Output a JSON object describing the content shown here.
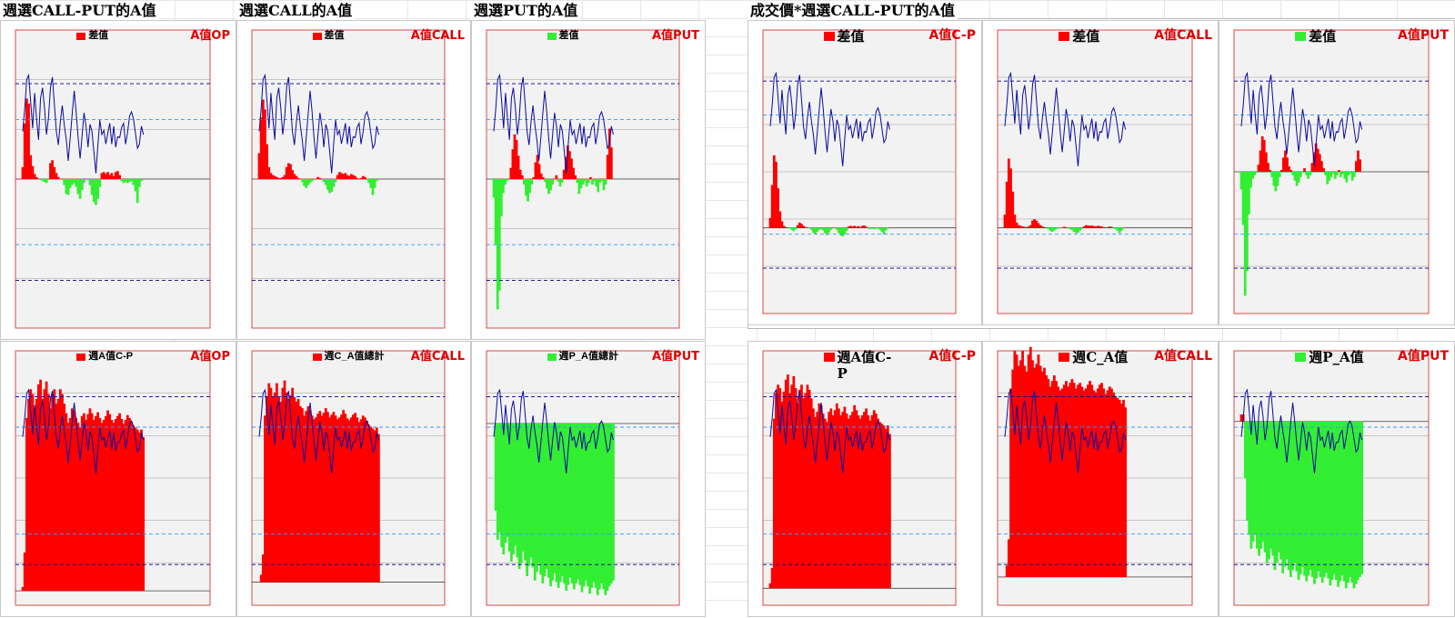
{
  "colors": {
    "up": "#ff0000",
    "down": "#33ee33",
    "price_line": "#0a0aa0",
    "tag": "#e00000"
  },
  "sections": [
    {
      "title": "週選CALL-PUT的A值"
    },
    {
      "title": "週選CALL的A值"
    },
    {
      "title": "週選PUT的A值"
    },
    {
      "title": "成交價*週選CALL-PUT的A值"
    }
  ],
  "chart_data": [
    {
      "type": "area",
      "row": "top",
      "group": "left",
      "legend": "差值",
      "tag": "A值OP",
      "legend_color": "#ff0000",
      "series": [
        {
          "values": [
            120,
            560,
            810,
            760,
            240,
            130,
            50,
            20,
            0,
            0,
            -20,
            -30,
            -40,
            -10,
            160,
            190,
            120,
            60,
            20,
            0,
            -10,
            -60,
            -150,
            -160,
            -90,
            -60,
            -40,
            -80,
            -150,
            -200,
            -110,
            -40,
            0,
            -10,
            -60,
            -160,
            -230,
            -260,
            -200,
            -80,
            60,
            70,
            50,
            70,
            40,
            60,
            30,
            70,
            80,
            40,
            -20,
            -40,
            -30,
            -40,
            -30,
            -20,
            -60,
            -120,
            -240,
            -80,
            -20,
            0
          ]
        }
      ],
      "ylim": [
        -1500,
        1500
      ]
    },
    {
      "type": "area",
      "row": "top",
      "group": "left",
      "legend": "差值",
      "tag": "A值CALL",
      "legend_color": "#ff0000",
      "series": [
        {
          "values": [
            260,
            620,
            800,
            700,
            350,
            120,
            60,
            40,
            30,
            20,
            10,
            10,
            20,
            40,
            120,
            160,
            150,
            90,
            50,
            30,
            10,
            0,
            -30,
            -70,
            -90,
            -60,
            -40,
            -20,
            -10,
            0,
            20,
            10,
            -10,
            -30,
            -60,
            -110,
            -140,
            -130,
            -80,
            -30,
            40,
            70,
            60,
            50,
            60,
            40,
            30,
            50,
            40,
            30,
            10,
            0,
            10,
            30,
            20,
            -10,
            -40,
            -90,
            -160,
            -90,
            -20,
            0
          ]
        }
      ],
      "ylim": [
        -1500,
        1500
      ]
    },
    {
      "type": "area",
      "row": "top",
      "group": "left",
      "legend": "差值",
      "tag": "A值PUT",
      "legend_color": "#33ee33",
      "series": [
        {
          "values": [
            -200,
            -700,
            -1400,
            -1200,
            -400,
            -150,
            -60,
            -20,
            0,
            120,
            320,
            480,
            420,
            250,
            100,
            40,
            -60,
            -180,
            -240,
            -150,
            -60,
            20,
            180,
            260,
            160,
            60,
            20,
            -30,
            -100,
            -160,
            -120,
            -60,
            0,
            40,
            -30,
            -80,
            -40,
            100,
            240,
            360,
            300,
            220,
            120,
            40,
            -40,
            -160,
            -100,
            -60,
            -20,
            -80,
            -40,
            20,
            -60,
            -20,
            -80,
            -140,
            -40,
            -20,
            -120,
            -60,
            260,
            540,
            340,
            0
          ]
        }
      ],
      "ylim": [
        -1600,
        1600
      ]
    },
    {
      "type": "area",
      "row": "top",
      "group": "right",
      "legend": "差值",
      "tag": "A值C-P",
      "legend_color": "#ff0000",
      "series": [
        {
          "values": [
            300,
            1300,
            2200,
            2000,
            1200,
            500,
            200,
            60,
            20,
            0,
            -20,
            -60,
            -100,
            -40,
            80,
            160,
            120,
            60,
            20,
            0,
            -10,
            -60,
            -150,
            -180,
            -120,
            -60,
            -40,
            -80,
            -160,
            -220,
            -140,
            -60,
            0,
            -20,
            -60,
            -160,
            -230,
            -260,
            -200,
            -90,
            40,
            60,
            40,
            60,
            30,
            50,
            20,
            60,
            70,
            30,
            -20,
            -40,
            -30,
            -40,
            -30,
            -20,
            -60,
            -120,
            -200,
            -80,
            -20,
            0
          ]
        }
      ],
      "ylim": [
        -2600,
        6000
      ]
    },
    {
      "type": "area",
      "row": "top",
      "group": "right",
      "legend": "差值",
      "tag": "A值CALL",
      "legend_color": "#ff0000",
      "series": [
        {
          "values": [
            400,
            1400,
            2100,
            1800,
            1100,
            400,
            160,
            80,
            60,
            40,
            30,
            20,
            40,
            80,
            220,
            260,
            220,
            140,
            80,
            40,
            20,
            0,
            -40,
            -90,
            -120,
            -80,
            -40,
            -20,
            -10,
            0,
            30,
            20,
            -10,
            -40,
            -70,
            -120,
            -160,
            -150,
            -90,
            -30,
            40,
            80,
            70,
            60,
            70,
            50,
            40,
            60,
            50,
            40,
            20,
            0,
            20,
            40,
            30,
            -10,
            -40,
            -90,
            -160,
            -90,
            -20,
            0
          ]
        }
      ],
      "ylim": [
        -2600,
        6000
      ]
    },
    {
      "type": "area",
      "row": "top",
      "group": "right",
      "legend": "差值",
      "tag": "A值PUT",
      "legend_color": "#33ee33",
      "series": [
        {
          "values": [
            -100,
            -300,
            -700,
            -560,
            -240,
            -90,
            -40,
            -20,
            0,
            40,
            120,
            200,
            180,
            110,
            50,
            10,
            -30,
            -80,
            -110,
            -80,
            -30,
            10,
            80,
            120,
            80,
            30,
            10,
            -20,
            -50,
            -80,
            -60,
            -30,
            0,
            20,
            -20,
            -40,
            -20,
            50,
            110,
            160,
            130,
            100,
            60,
            20,
            -20,
            -70,
            -50,
            -30,
            -10,
            -40,
            -20,
            10,
            -30,
            -10,
            -40,
            -60,
            -20,
            -10,
            -50,
            -30,
            60,
            120,
            70,
            0
          ]
        }
      ],
      "ylim": [
        -800,
        800
      ]
    },
    {
      "type": "area",
      "row": "bottom",
      "group": "left",
      "legend": "週A值C-P",
      "tag": "A值OP",
      "legend_color": "#ff0000",
      "series": [
        {
          "values": [
            400,
            4000,
            18000,
            20000,
            21000,
            20500,
            19000,
            20000,
            21500,
            22000,
            20000,
            21000,
            21800,
            20500,
            19000,
            20500,
            21000,
            19500,
            20000,
            21000,
            20500,
            19500,
            18500,
            17500,
            18000,
            19000,
            18800,
            18000,
            17500,
            17000,
            18200,
            18500,
            17800,
            18400,
            19000,
            18500,
            17800,
            18200,
            18600,
            18000,
            17500,
            17800,
            18200,
            18800,
            18400,
            17800,
            17500,
            17900,
            18200,
            18500,
            17900,
            17400,
            17800,
            18300,
            18000,
            17600,
            17200,
            17000,
            16800,
            16500,
            16800,
            16000
          ]
        }
      ],
      "ylim": [
        -1500,
        25000
      ]
    },
    {
      "type": "area",
      "row": "bottom",
      "group": "left",
      "legend": "週C_A值總計",
      "tag": "A值CALL",
      "legend_color": "#ff0000",
      "series": [
        {
          "values": [
            0,
            800,
            3000,
            18000,
            20000,
            21500,
            21000,
            20000,
            20500,
            21500,
            20000,
            19500,
            21000,
            21800,
            20500,
            19800,
            20200,
            21000,
            20000,
            19500,
            19800,
            19000,
            18800,
            18000,
            18500,
            19000,
            18600,
            18000,
            17600,
            17800,
            18200,
            18500,
            18000,
            18300,
            18800,
            18400,
            17800,
            18100,
            18400,
            18000,
            17600,
            17800,
            18100,
            18600,
            18200,
            17700,
            17500,
            17800,
            18100,
            18300,
            17800,
            17300,
            17600,
            18000,
            17800,
            17400,
            17000,
            16800,
            16600,
            16400,
            16700,
            16000
          ]
        }
      ],
      "ylim": [
        -2500,
        25000
      ]
    },
    {
      "type": "area",
      "row": "bottom",
      "group": "left",
      "legend": "週P_A值總計",
      "tag": "A值PUT",
      "legend_color": "#33ee33",
      "series": [
        {
          "values": [
            0,
            -6000,
            -8000,
            -7500,
            -8500,
            -9000,
            -8200,
            -7800,
            -8800,
            -9500,
            -9000,
            -8400,
            -9200,
            -10000,
            -9600,
            -8800,
            -9400,
            -10500,
            -9800,
            -9200,
            -9900,
            -10800,
            -10200,
            -9600,
            -10400,
            -11000,
            -10500,
            -10000,
            -10600,
            -11200,
            -10800,
            -10300,
            -10900,
            -11300,
            -10900,
            -10500,
            -11000,
            -11500,
            -11100,
            -10600,
            -11000,
            -11400,
            -11000,
            -10700,
            -11100,
            -11600,
            -11200,
            -10800,
            -11200,
            -11700,
            -11300,
            -10900,
            -11300,
            -11800,
            -11400,
            -11000,
            -11400,
            -11800,
            -11500,
            -11200,
            -11000,
            -10800
          ]
        }
      ],
      "ylim": [
        -12500,
        5000
      ]
    },
    {
      "type": "area",
      "row": "bottom",
      "group": "right",
      "legend": "週A值C-P",
      "tag": "A值C-P",
      "legend_color": "#ff0000",
      "series": [
        {
          "values": [
            300,
            1200,
            10000,
            11500,
            12000,
            11800,
            11000,
            11600,
            12300,
            12600,
            11500,
            12000,
            12500,
            11800,
            10900,
            11700,
            12000,
            11200,
            11500,
            12000,
            11700,
            11200,
            10600,
            10100,
            10400,
            10900,
            10800,
            10300,
            10000,
            9800,
            10400,
            10600,
            10200,
            10500,
            10900,
            10600,
            10200,
            10400,
            10700,
            10300,
            10000,
            10200,
            10400,
            10800,
            10500,
            10200,
            10000,
            10200,
            10400,
            10600,
            10200,
            9900,
            10200,
            10500,
            10300,
            10000,
            9800,
            9700,
            9600,
            9400,
            9600,
            9100
          ]
        }
      ],
      "ylim": [
        -1000,
        14000
      ]
    },
    {
      "type": "area",
      "row": "bottom",
      "group": "right",
      "legend": "週C_A值",
      "tag": "A值CALL",
      "legend_color": "#ff0000",
      "series": [
        {
          "values": [
            0,
            600,
            2000,
            10000,
            11000,
            12000,
            11800,
            11200,
            11500,
            12000,
            11200,
            10900,
            11800,
            12200,
            11500,
            11100,
            11300,
            11800,
            11200,
            10900,
            11100,
            10700,
            10500,
            10100,
            10400,
            10700,
            10400,
            10100,
            9900,
            10000,
            10200,
            10400,
            10100,
            10300,
            10500,
            10300,
            10000,
            10200,
            10300,
            10100,
            9900,
            10000,
            10200,
            10400,
            10200,
            9900,
            9800,
            10000,
            10200,
            10300,
            10000,
            9700,
            9900,
            10100,
            10000,
            9800,
            9600,
            9500,
            9400,
            9200,
            9400,
            9000
          ]
        }
      ],
      "ylim": [
        -1500,
        12000
      ]
    },
    {
      "type": "area",
      "row": "bottom",
      "group": "right",
      "legend": "週P_A值",
      "tag": "A值PUT",
      "legend_color": "#33ee33",
      "series": [
        {
          "values": [
            10,
            10,
            -80,
            -140,
            -160,
            -180,
            -170,
            -160,
            -180,
            -190,
            -180,
            -170,
            -185,
            -200,
            -195,
            -180,
            -190,
            -210,
            -200,
            -185,
            -195,
            -215,
            -205,
            -195,
            -210,
            -220,
            -210,
            -200,
            -212,
            -224,
            -216,
            -206,
            -218,
            -226,
            -218,
            -210,
            -220,
            -230,
            -222,
            -212,
            -220,
            -228,
            -220,
            -214,
            -222,
            -232,
            -224,
            -216,
            -224,
            -234,
            -226,
            -218,
            -226,
            -236,
            -228,
            -220,
            -228,
            -236,
            -230,
            -224,
            -220,
            -216
          ]
        }
      ],
      "ylim": [
        -260,
        100
      ]
    }
  ]
}
